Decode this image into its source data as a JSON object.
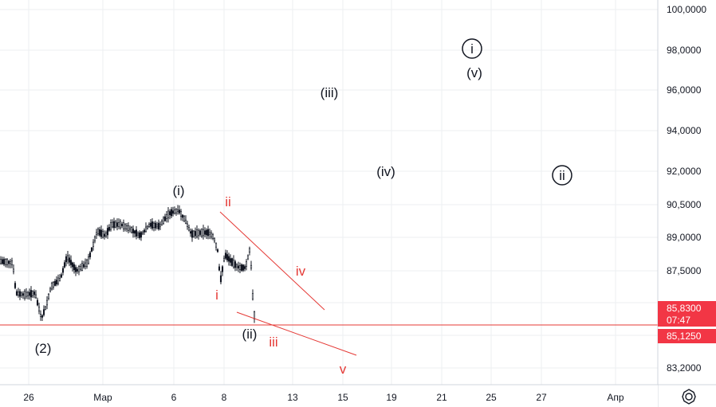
{
  "colors": {
    "background": "#ffffff",
    "grid": "#eceff2",
    "axis_text": "#131722",
    "candle": "#131722",
    "red_line": "#e53935",
    "last_price_badge": "#f23645",
    "red_label": "#e53935",
    "black_label": "#131722"
  },
  "chart_data": {
    "type": "candlestick",
    "title": "",
    "xlabel": "",
    "ylabel": "",
    "x_ticks": [
      "26",
      "Мар",
      "6",
      "8",
      "13",
      "15",
      "19",
      "21",
      "25",
      "27",
      "Апр"
    ],
    "y_ticks": [
      "100,0000",
      "98,0000",
      "96,0000",
      "94,0000",
      "92,0000",
      "90,5000",
      "89,0000",
      "87,5000",
      "83,2000"
    ],
    "price_badges": [
      {
        "price": "85,8300",
        "countdown": "07:47",
        "style": "last-price"
      },
      {
        "price": "85,1250",
        "style": "horizontal-line"
      }
    ],
    "horizontal_line": {
      "price": 85.125
    },
    "wave_labels_black": [
      "(2)",
      "(i)",
      "(ii)",
      "(iii)",
      "(iv)",
      "(v)",
      "i",
      "ii"
    ],
    "wave_labels_red": [
      "i",
      "ii",
      "iii",
      "iv",
      "v"
    ],
    "circled_labels": [
      "i",
      "ii"
    ],
    "grid": true,
    "price_axis": "right",
    "settings_icon": "gear-icon"
  }
}
